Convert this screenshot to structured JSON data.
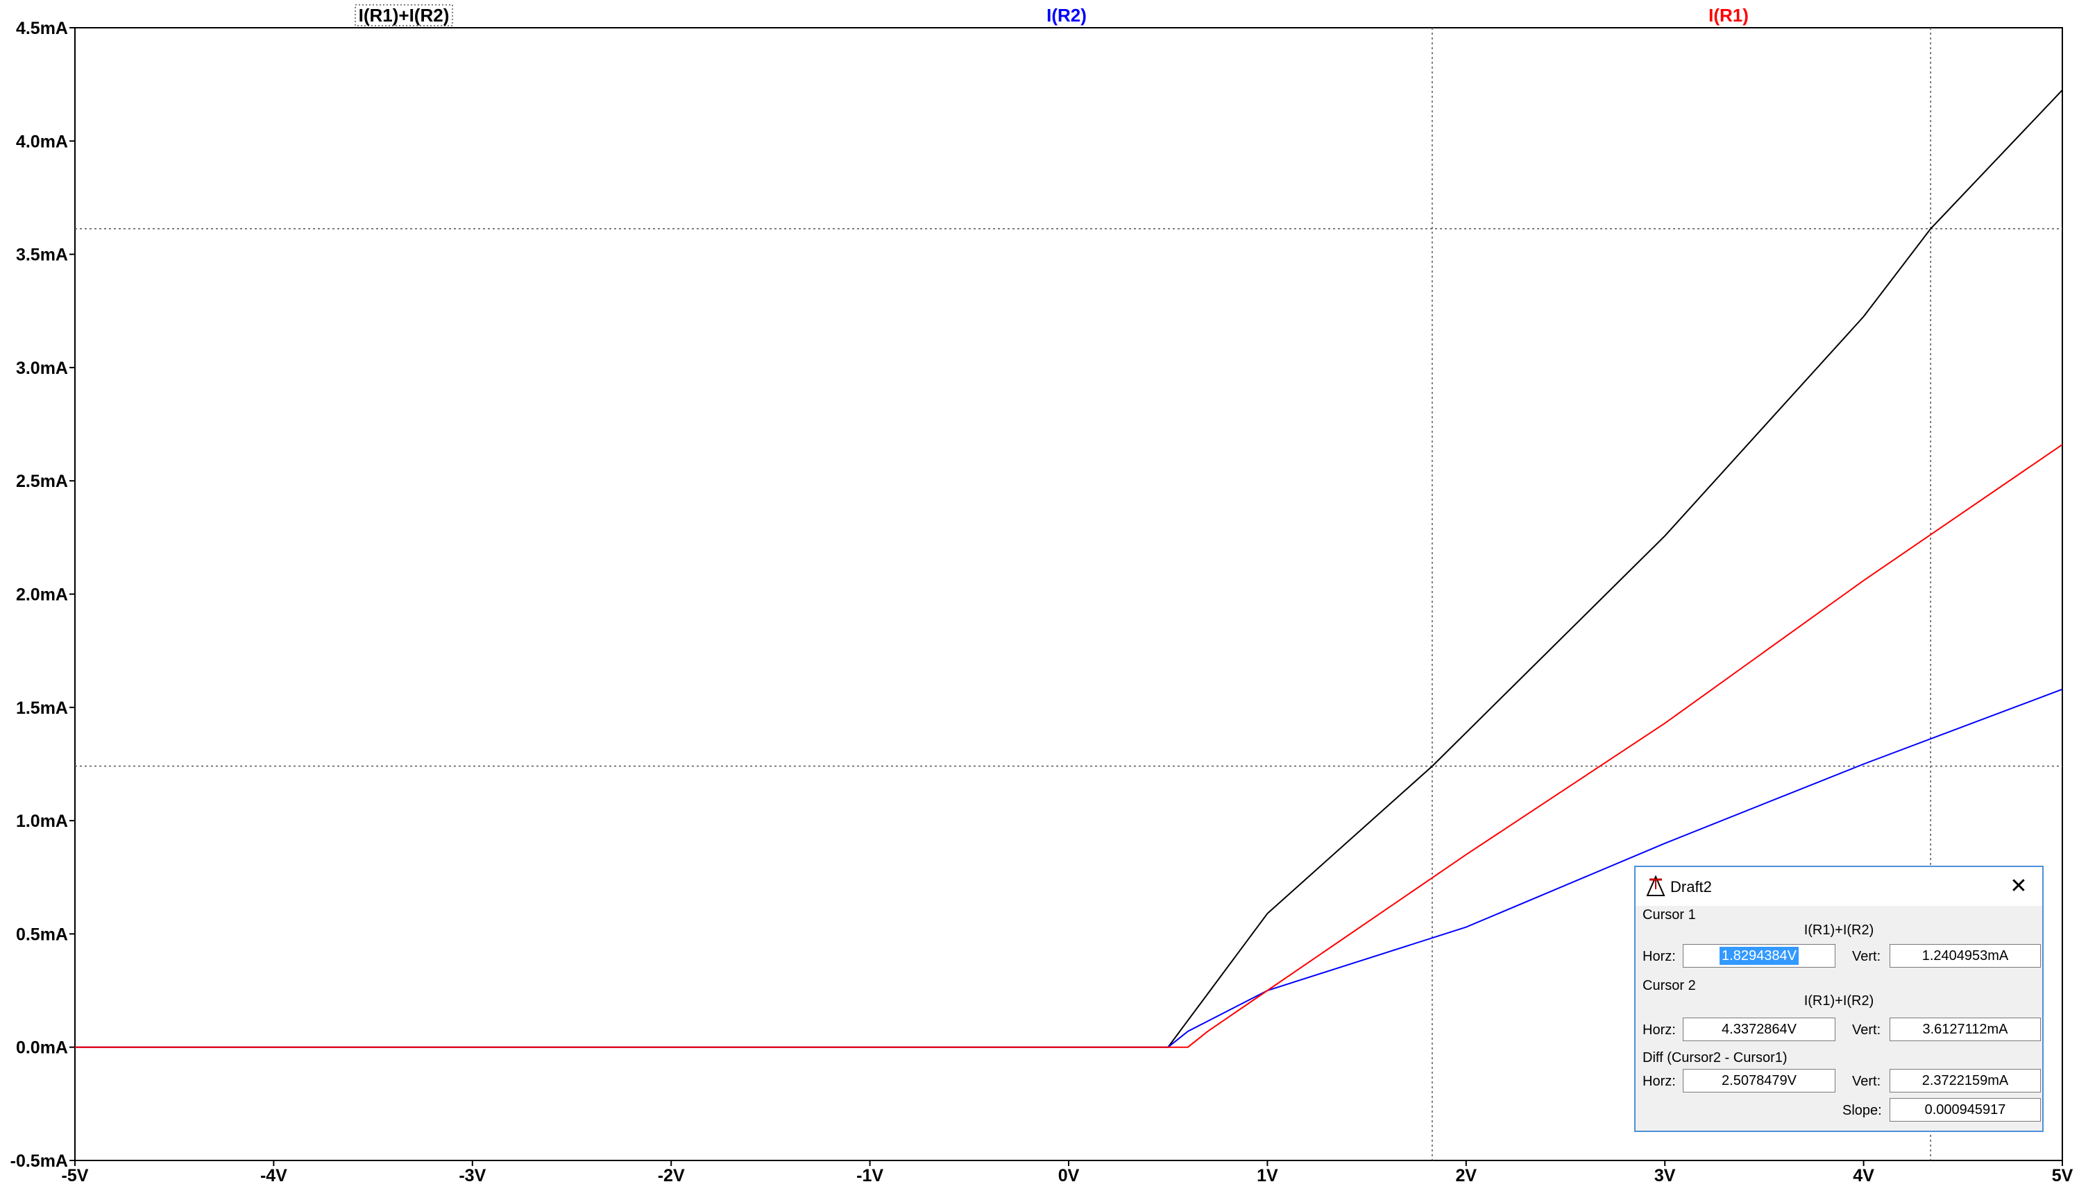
{
  "window": {
    "title": "Draft2"
  },
  "trace_labels": [
    {
      "name": "I(R1)+I(R2)",
      "color": "#000000"
    },
    {
      "name": "I(R2)",
      "color": "#0000ff"
    },
    {
      "name": "I(R1)",
      "color": "#ff0000"
    }
  ],
  "chart_data": {
    "type": "line",
    "title": "",
    "xlabel": "",
    "ylabel": "",
    "xlim": [
      -5,
      5
    ],
    "ylim": [
      -0.5,
      4.5
    ],
    "x_unit": "V",
    "y_unit": "mA",
    "x_ticks": [
      "-5V",
      "-4V",
      "-3V",
      "-2V",
      "-1V",
      "0V",
      "1V",
      "2V",
      "3V",
      "4V",
      "5V"
    ],
    "y_ticks": [
      "4.5mA",
      "4.0mA",
      "3.5mA",
      "3.0mA",
      "2.5mA",
      "2.0mA",
      "1.5mA",
      "1.0mA",
      "0.5mA",
      "0.0mA",
      "-0.5mA"
    ],
    "grid": false,
    "series": [
      {
        "name": "I(R1)+I(R2)",
        "color": "#000000",
        "x": [
          -5,
          0.5,
          0.6,
          0.7,
          1.0,
          1.8294,
          3,
          4,
          4.3373,
          5
        ],
        "y": [
          0,
          0,
          0.118,
          0.236,
          0.59,
          1.2405,
          2.257,
          3.225,
          3.6127,
          4.225
        ]
      },
      {
        "name": "I(R2)",
        "color": "#0000ff",
        "x": [
          -5,
          0.5,
          0.55,
          0.6,
          0.7,
          1.0,
          2.0,
          3.0,
          4.0,
          5.0
        ],
        "y": [
          0,
          0,
          0.035,
          0.07,
          0.115,
          0.25,
          0.53,
          0.9,
          1.25,
          1.58
        ]
      },
      {
        "name": "I(R1)",
        "color": "#ff0000",
        "x": [
          -5,
          0.5,
          0.6,
          0.7,
          1.0,
          2.0,
          3.0,
          4.0,
          5.0
        ],
        "y": [
          0,
          0,
          0,
          0.07,
          0.25,
          0.85,
          1.43,
          2.06,
          2.66
        ]
      }
    ],
    "cursors": [
      {
        "x": 1.8294384,
        "y": 1.2404953
      },
      {
        "x": 4.3372864,
        "y": 3.6127112
      }
    ]
  },
  "dialog": {
    "cursor1_label": "Cursor 1",
    "cursor1_trace": "I(R1)+I(R2)",
    "cursor1_horz": "1.8294384V",
    "cursor1_vert": "1.2404953mA",
    "cursor2_label": "Cursor 2",
    "cursor2_trace": "I(R1)+I(R2)",
    "cursor2_horz": "4.3372864V",
    "cursor2_vert": "3.6127112mA",
    "diff_label": "Diff (Cursor2 - Cursor1)",
    "diff_horz": "2.5078479V",
    "diff_vert": "2.3722159mA",
    "slope": "0.000945917",
    "horz_label": "Horz:",
    "vert_label": "Vert:",
    "slope_label": "Slope:",
    "close_symbol": "✕"
  }
}
